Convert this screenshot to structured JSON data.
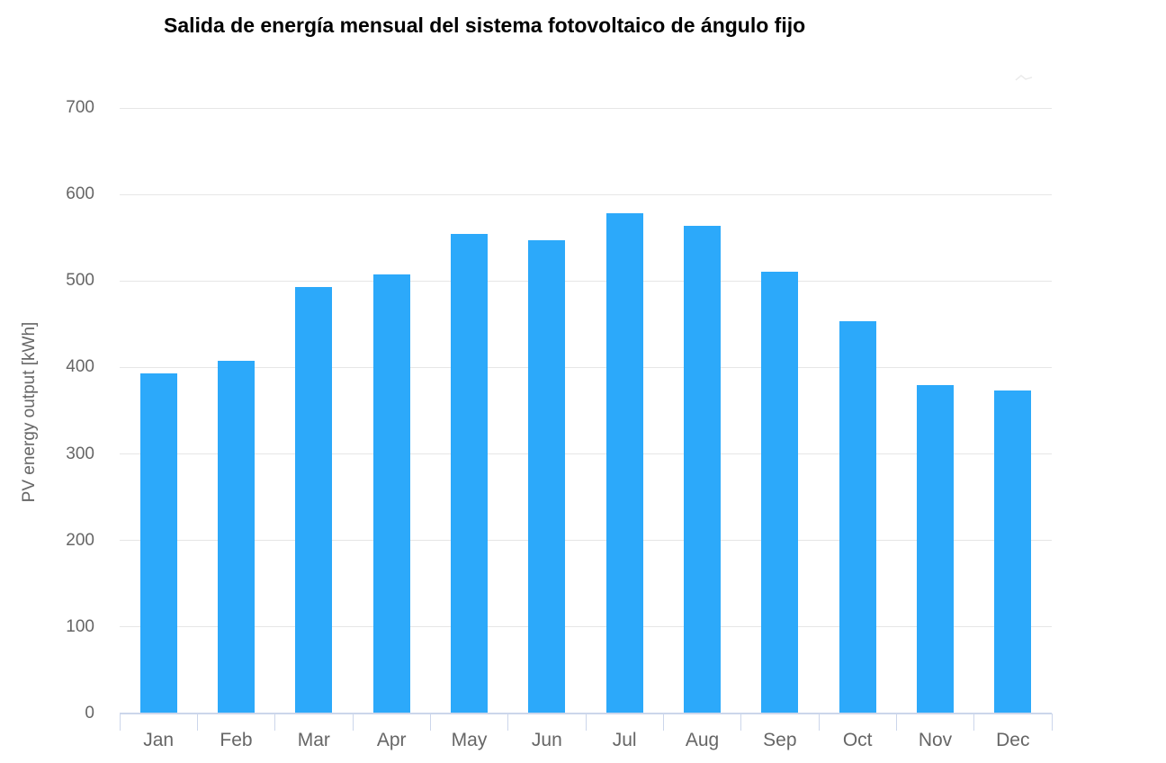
{
  "chart_data": {
    "type": "bar",
    "title": "Salida de energía mensual del sistema fotovoltaico de ángulo fijo",
    "xlabel": "",
    "ylabel": "PV energy output [kWh]",
    "categories": [
      "Jan",
      "Feb",
      "Mar",
      "Apr",
      "May",
      "Jun",
      "Jul",
      "Aug",
      "Sep",
      "Oct",
      "Nov",
      "Dec"
    ],
    "values": [
      393,
      408,
      493,
      508,
      554,
      547,
      578,
      564,
      511,
      454,
      380,
      373
    ],
    "unit": "kWh",
    "ylim": [
      0,
      700
    ],
    "yticks": [
      0,
      100,
      200,
      300,
      400,
      500,
      600,
      700
    ],
    "grid": true,
    "legend": "none",
    "colors": {
      "bar": "#2CA9FA",
      "grid": "#e6e6e6",
      "axis": "#ccd6eb",
      "labels": "#666666",
      "title": "#000000"
    }
  }
}
